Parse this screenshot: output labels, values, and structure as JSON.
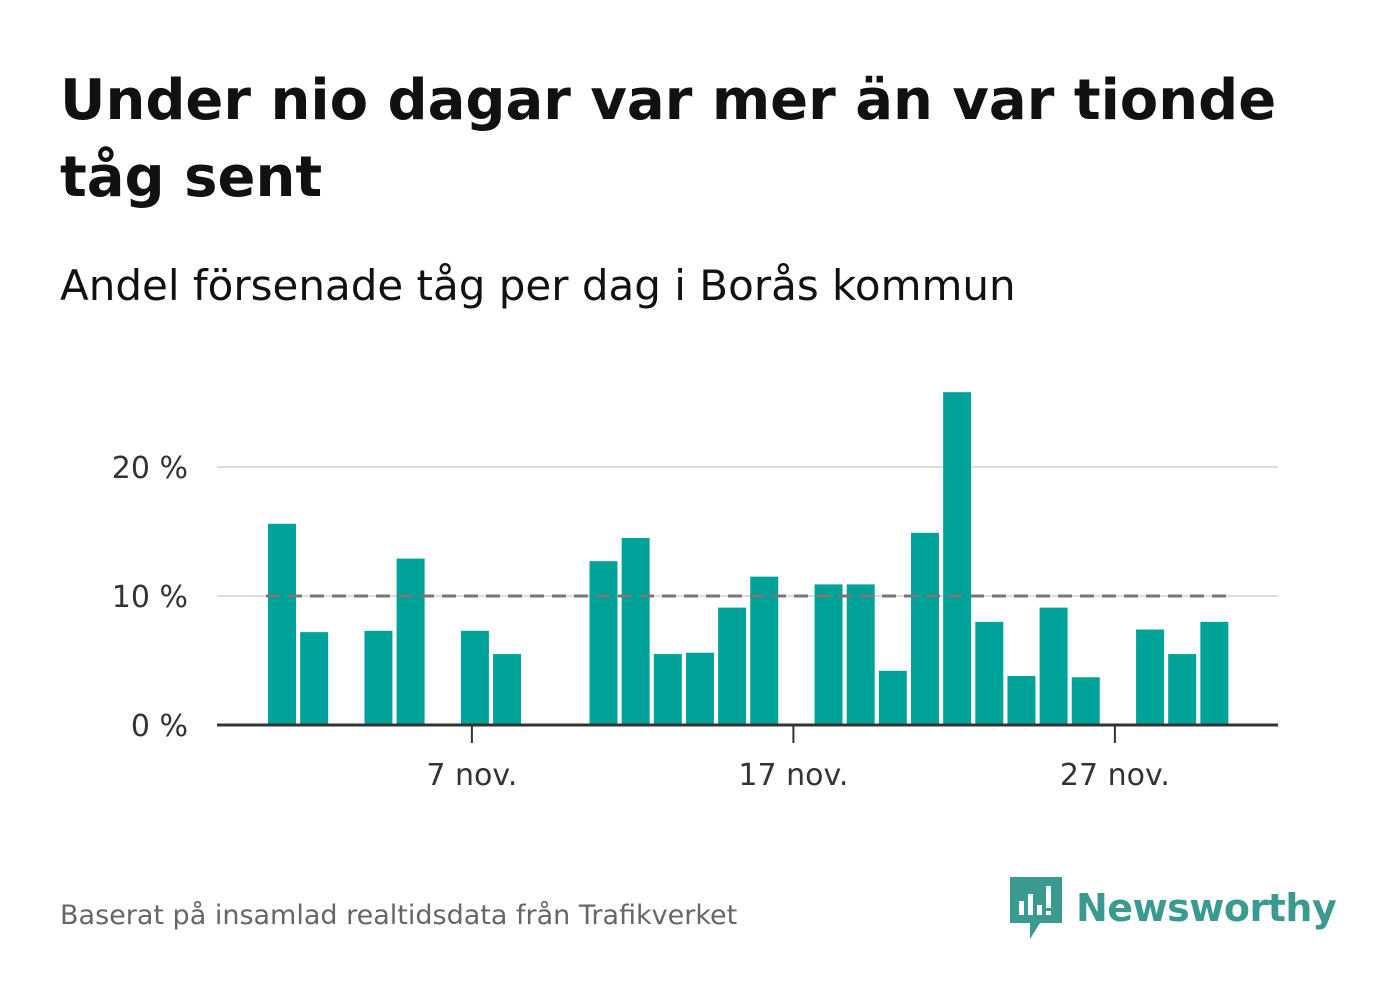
{
  "title": "Under nio dagar var mer än var tionde tåg sent",
  "subtitle": "Andel försenade tåg per dag i Borås kommun",
  "footer": "Baserat på insamlad realtidsdata från Trafikverket",
  "brand": {
    "name": "Newsworthy",
    "icon": "newsworthy-logo-icon",
    "color": "#3a9a90"
  },
  "colors": {
    "bar": "#00a39a",
    "reference_line": "#777777",
    "grid": "#dddddd",
    "axis": "#333333"
  },
  "chart_data": {
    "type": "bar",
    "x_type": "date",
    "x": [
      "2023-11-01",
      "2023-11-02",
      "2023-11-03",
      "2023-11-04",
      "2023-11-05",
      "2023-11-06",
      "2023-11-07",
      "2023-11-08",
      "2023-11-09",
      "2023-11-10",
      "2023-11-11",
      "2023-11-12",
      "2023-11-13",
      "2023-11-14",
      "2023-11-15",
      "2023-11-16",
      "2023-11-17",
      "2023-11-18",
      "2023-11-19",
      "2023-11-20",
      "2023-11-21",
      "2023-11-22",
      "2023-11-23",
      "2023-11-24",
      "2023-11-25",
      "2023-11-26",
      "2023-11-27",
      "2023-11-28",
      "2023-11-29",
      "2023-11-30"
    ],
    "values": [
      15.6,
      7.2,
      null,
      7.3,
      12.9,
      null,
      7.3,
      5.5,
      null,
      null,
      12.7,
      14.5,
      5.5,
      5.6,
      9.1,
      11.5,
      null,
      10.9,
      10.9,
      4.2,
      14.9,
      25.8,
      8.0,
      3.8,
      9.1,
      3.7,
      null,
      7.4,
      5.5,
      8.0
    ],
    "reference_line": {
      "value": 10,
      "style": "dashed"
    },
    "xticks": [
      "7 nov.",
      "17 nov.",
      "27 nov."
    ],
    "xtick_dates": [
      "2023-11-07",
      "2023-11-17",
      "2023-11-27"
    ],
    "yticks": [
      "0 %",
      "10 %",
      "20 %"
    ],
    "ytick_values": [
      0,
      10,
      20
    ],
    "ylim": [
      0,
      26
    ],
    "grid": true,
    "xlabel": "",
    "ylabel": ""
  }
}
